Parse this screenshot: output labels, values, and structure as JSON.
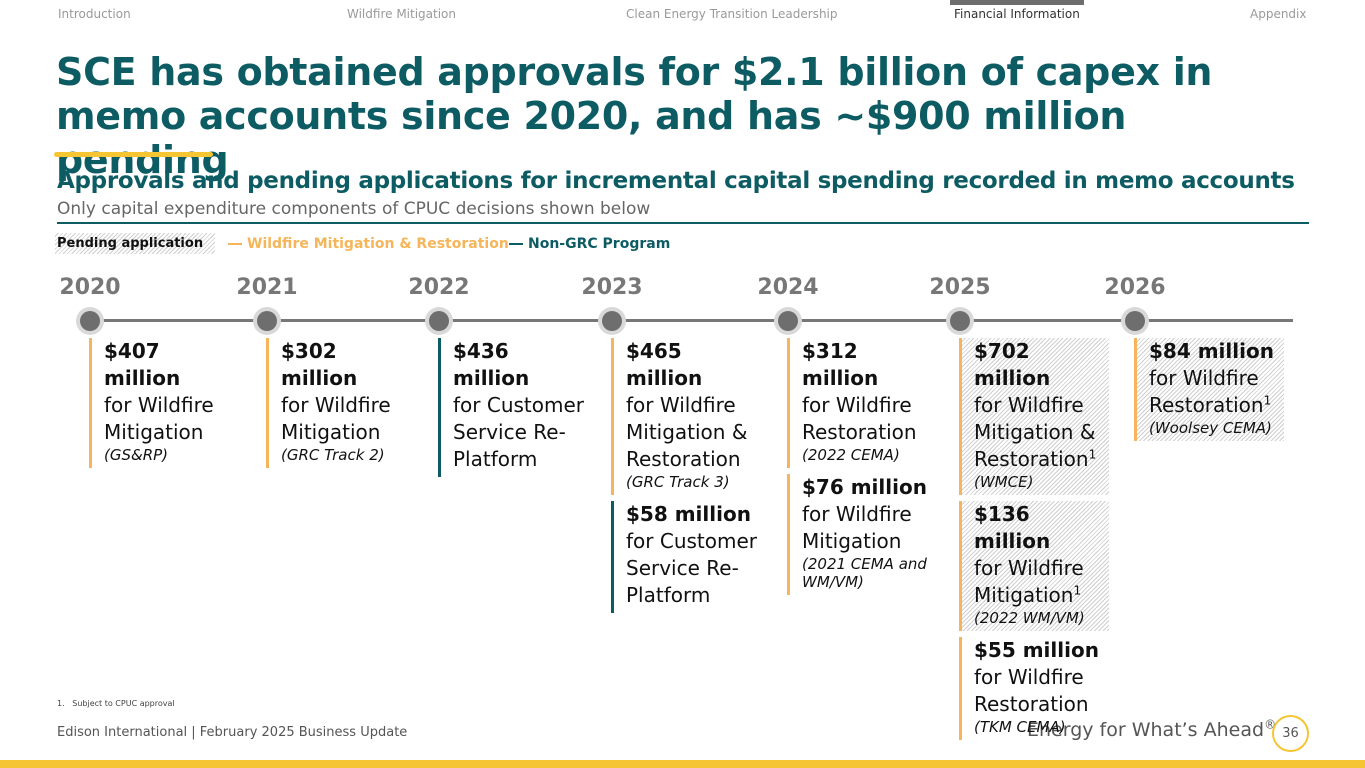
{
  "nav": [
    "Introduction",
    "Wildfire Mitigation",
    "Clean Energy Transition Leadership",
    "Financial Information",
    "Appendix"
  ],
  "title": "SCE has obtained approvals for $2.1 billion of capex in memo accounts since 2020, and has ~$900 million pending",
  "heading": "Approvals and pending applications for incremental capital spending recorded in memo accounts",
  "subheading": "Only capital expenditure components of CPUC decisions shown below",
  "legend": {
    "pending": "Pending application",
    "items": [
      {
        "name": "Wildfire Mitigation & Restoration",
        "color": "#f5b55a"
      },
      {
        "name": "Non-GRC Program",
        "color": "#0d5c63"
      }
    ]
  },
  "timeline": [
    {
      "year": "2020",
      "entries": [
        {
          "amount": "$407 million",
          "text": "for Wildfire Mitigation",
          "note": "(GS&RP)",
          "color": "#f5b55a"
        }
      ]
    },
    {
      "year": "2021",
      "entries": [
        {
          "amount": "$302 million",
          "text": "for Wildfire Mitigation",
          "note": "(GRC Track 2)",
          "color": "#f5b55a"
        }
      ]
    },
    {
      "year": "2022",
      "entries": [
        {
          "amount": "$436 million",
          "text": "for Customer Service Re-Platform",
          "color": "#0d5c63"
        }
      ]
    },
    {
      "year": "2023",
      "entries": [
        {
          "amount": "$465 million",
          "text": "for Wildfire Mitigation & Restoration",
          "note": "(GRC Track 3)",
          "color": "#f5b55a"
        },
        {
          "amount": "$58 million",
          "text": "for Customer Service Re-Platform",
          "color": "#0d5c63"
        }
      ]
    },
    {
      "year": "2024",
      "entries": [
        {
          "amount": "$312 million",
          "text": "for Wildfire Restoration",
          "note": "(2022 CEMA)",
          "color": "#f5b55a"
        },
        {
          "amount": "$76 million",
          "text": "for Wildfire Mitigation",
          "note": "(2021 CEMA and WM/VM)",
          "color": "#f5b55a"
        }
      ]
    },
    {
      "year": "2025",
      "entries": [
        {
          "amount": "$702 million",
          "text": "for Wildfire Mitigation & Restoration",
          "footnote": "1",
          "note": "(WMCE)",
          "color": "#f5b55a",
          "pending": true
        },
        {
          "amount": "$136 million",
          "text": "for Wildfire Mitigation",
          "footnote": "1",
          "note": "(2022 WM/VM)",
          "color": "#f5b55a",
          "pending": true
        },
        {
          "amount": "$55 million",
          "text": "for Wildfire Restoration",
          "note": "(TKM CEMA)",
          "color": "#f5b55a"
        }
      ]
    },
    {
      "year": "2026",
      "entries": [
        {
          "amount": "$84 million",
          "text": "for Wildfire Restoration",
          "footnote": "1",
          "note": "(Woolsey CEMA)",
          "color": "#f5b55a",
          "pending": true
        }
      ]
    }
  ],
  "footnote": {
    "number": "1.",
    "text": "Subject to CPUC approval"
  },
  "footer": {
    "left": "Edison International |  February 2025 Business Update",
    "tagline": "Energy for What’s Ahead",
    "mark": "®",
    "page": "36"
  }
}
